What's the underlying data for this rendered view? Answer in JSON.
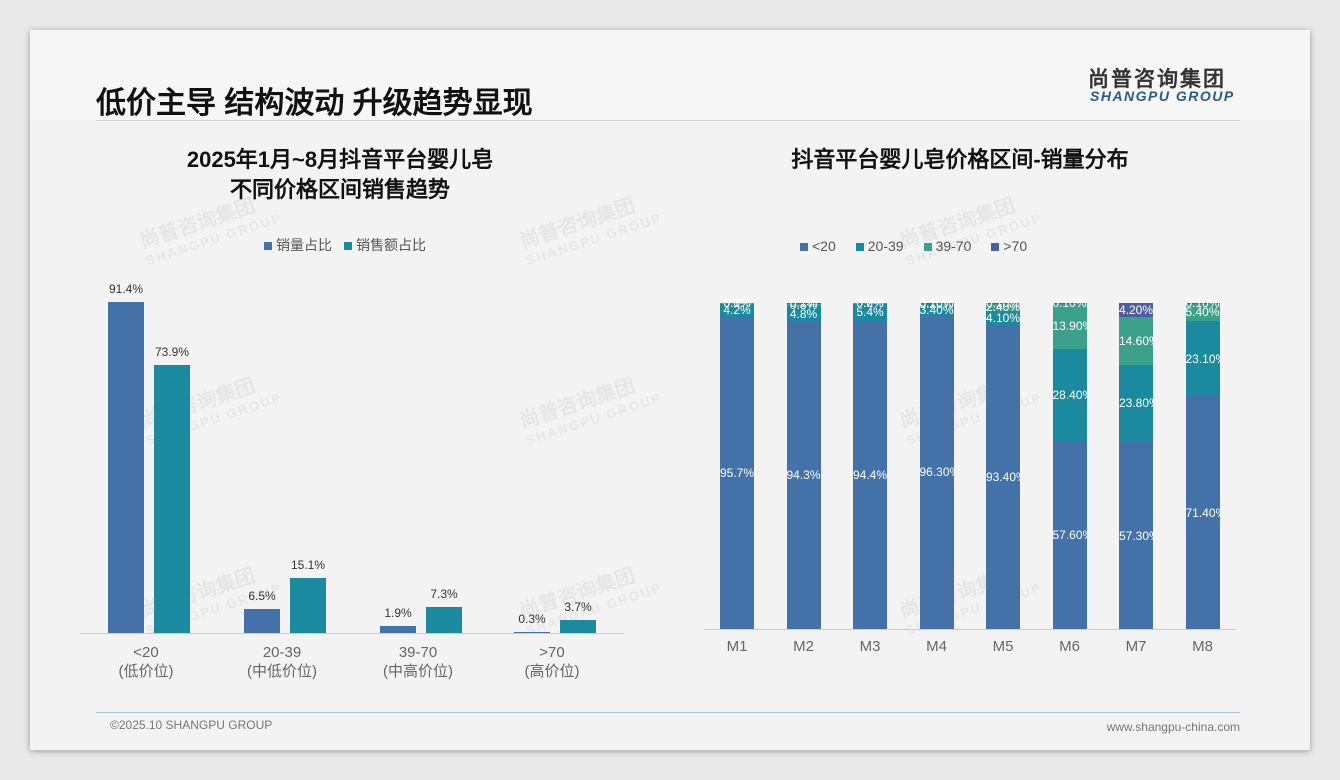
{
  "header": {
    "title": "低价主导 结构波动 升级趋势显现",
    "logo_cn": "尚普咨询集团",
    "logo_en": "SHANGPU GROUP"
  },
  "footer": {
    "copyright": "©2025.10 SHANGPU GROUP",
    "website": "www.shangpu-china.com"
  },
  "watermark": {
    "cn": "尚普咨询集团",
    "en": "SHANGPU GROUP"
  },
  "colors": {
    "blue": "#4472a8",
    "teal": "#1b8a9e",
    "green": "#3da08a",
    "purple": "#4f5ea0"
  },
  "left_chart": {
    "title_line1": "2025年1月~8月抖音平台婴儿皂",
    "title_line2": "不同价格区间销售趋势",
    "legend": [
      "销量占比",
      "销售额占比"
    ]
  },
  "right_chart": {
    "title": "抖音平台婴儿皂价格区间-销量分布",
    "legend": [
      "<20",
      "20-39",
      "39-70",
      ">70"
    ]
  },
  "chart_data": [
    {
      "type": "bar",
      "title": "2025年1月~8月抖音平台婴儿皂不同价格区间销售趋势",
      "categories": [
        "<20\n(低价位)",
        "20-39\n(中低价位)",
        "39-70\n(中高价位)",
        ">70\n(高价位)"
      ],
      "cat_main": [
        "<20",
        "20-39",
        "39-70",
        ">70"
      ],
      "cat_sub": [
        "(低价位)",
        "(中低价位)",
        "(中高价位)",
        "(高价位)"
      ],
      "series": [
        {
          "name": "销量占比",
          "values": [
            91.4,
            6.5,
            1.9,
            0.3
          ]
        },
        {
          "name": "销售额占比",
          "values": [
            73.9,
            15.1,
            7.3,
            3.7
          ]
        }
      ],
      "labels": [
        [
          "91.4%",
          "6.5%",
          "1.9%",
          "0.3%"
        ],
        [
          "73.9%",
          "15.1%",
          "7.3%",
          "3.7%"
        ]
      ],
      "legend_position": "top",
      "grid": false,
      "ylim": [
        0,
        100
      ]
    },
    {
      "type": "bar",
      "stacked": true,
      "percent": true,
      "title": "抖音平台婴儿皂价格区间-销量分布",
      "categories": [
        "M1",
        "M2",
        "M3",
        "M4",
        "M5",
        "M6",
        "M7",
        "M8"
      ],
      "series": [
        {
          "name": "<20",
          "values": [
            95.7,
            94.3,
            94.4,
            96.3,
            93.4,
            57.6,
            57.3,
            71.4
          ],
          "labels": [
            "95.7%",
            "94.3%",
            "94.4%",
            "96.30%",
            "93.40%",
            "57.60%",
            "57.30%",
            "71.40%"
          ]
        },
        {
          "name": "20-39",
          "values": [
            4.2,
            4.8,
            5.4,
            3.4,
            4.1,
            28.4,
            23.8,
            23.1
          ],
          "labels": [
            "4.2%",
            "4.8%",
            "5.4%",
            "3.40%",
            "4.10%",
            "28.40%",
            "23.80%",
            "23.10%"
          ]
        },
        {
          "name": "39-70",
          "values": [
            0.1,
            0.8,
            0.2,
            0.2,
            2.4,
            13.9,
            14.6,
            5.4
          ],
          "labels": [
            "0.1%",
            "0.8%",
            "0.2%",
            "0.20%",
            "2.40%",
            "13.90%",
            "14.60%",
            "5.40%"
          ]
        },
        {
          "name": ">70",
          "values": [
            0.0,
            0.1,
            0.0,
            0.1,
            0.1,
            0.1,
            4.2,
            0.1
          ],
          "labels": [
            "0.0%",
            "0.1%",
            "0.0%",
            "0.10%",
            "0.10%",
            "0.10%",
            "4.20%",
            "0.10%"
          ]
        }
      ],
      "legend_position": "top",
      "grid": false,
      "ylim": [
        0,
        100
      ]
    }
  ]
}
